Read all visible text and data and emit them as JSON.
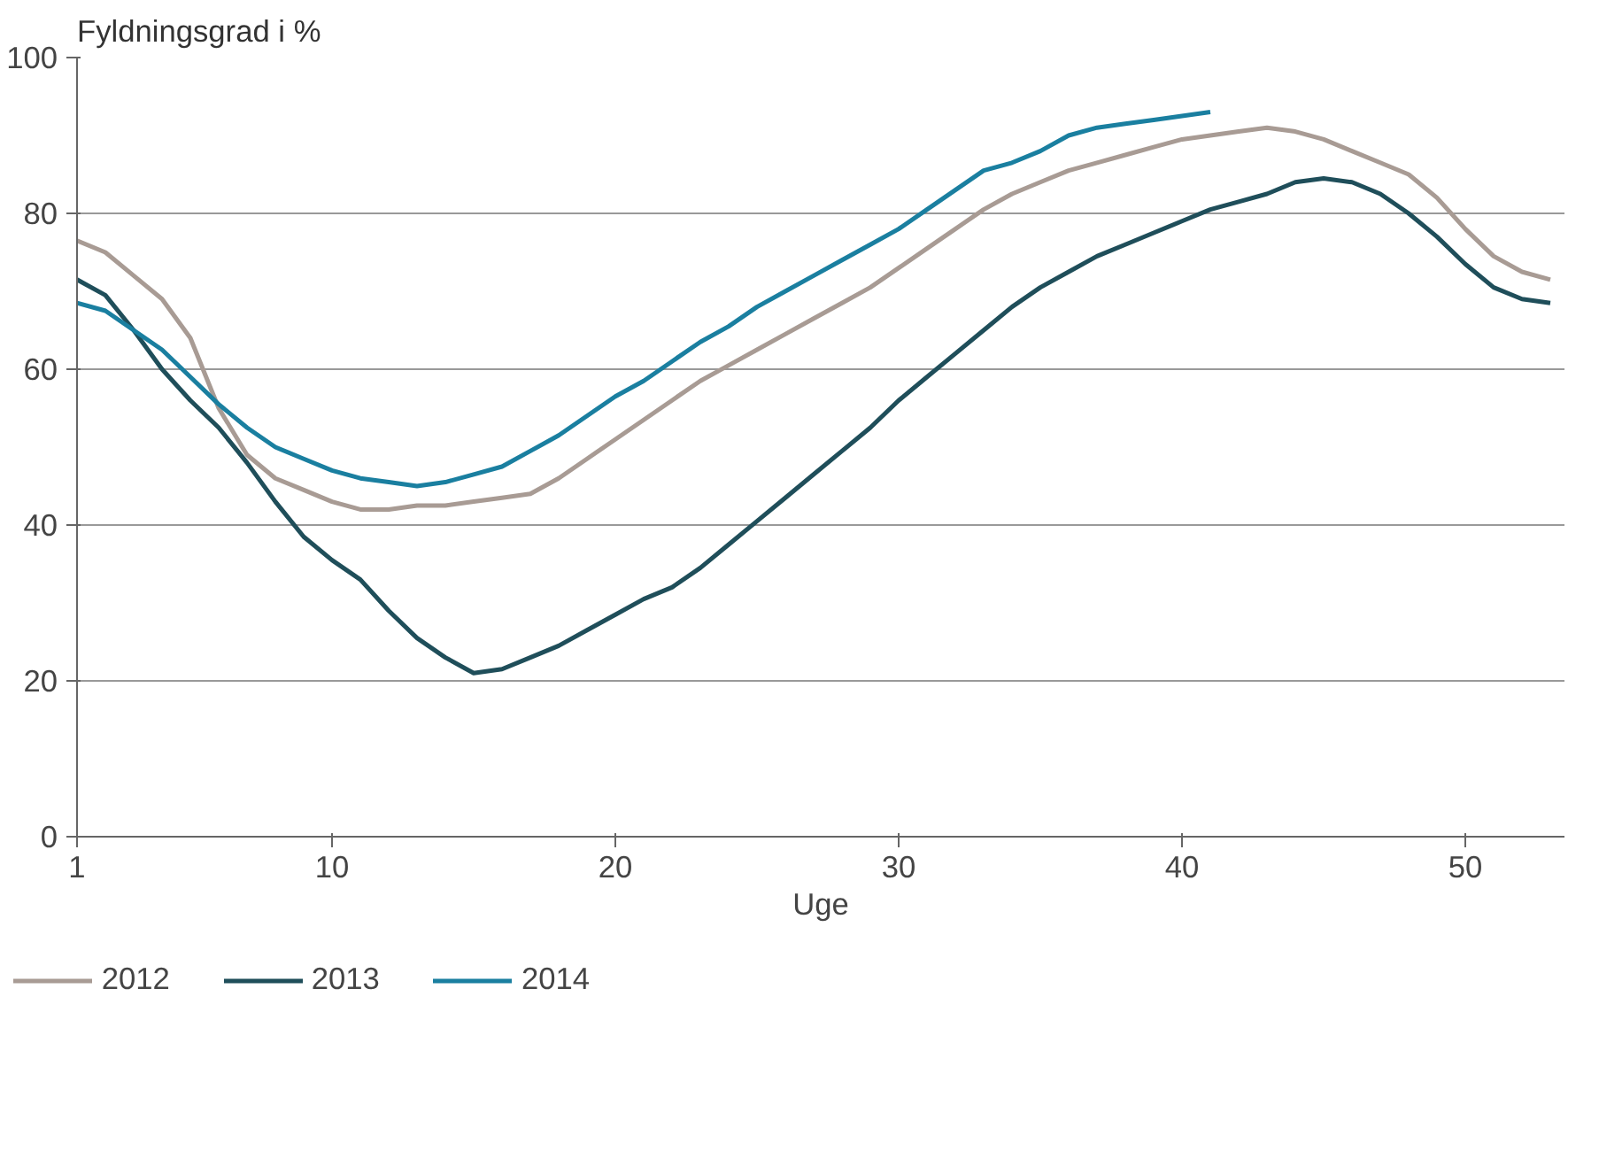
{
  "chart_data": {
    "type": "line",
    "ylabel": "Fyldningsgrad i %",
    "xlabel": "Uge",
    "x": [
      1,
      2,
      3,
      4,
      5,
      6,
      7,
      8,
      9,
      10,
      11,
      12,
      13,
      14,
      15,
      16,
      17,
      18,
      19,
      20,
      21,
      22,
      23,
      24,
      25,
      26,
      27,
      28,
      29,
      30,
      31,
      32,
      33,
      34,
      35,
      36,
      37,
      38,
      39,
      40,
      41,
      42,
      43,
      44,
      45,
      46,
      47,
      48,
      49,
      50,
      51,
      52,
      53
    ],
    "series": [
      {
        "name": "2012",
        "color": "#a89b94",
        "values": [
          76.5,
          75,
          72,
          69,
          64,
          55,
          49,
          46,
          44.5,
          43,
          42,
          42,
          42.5,
          42.5,
          43,
          43.5,
          44,
          46,
          48.5,
          51,
          53.5,
          56,
          58.5,
          60.5,
          62.5,
          64.5,
          66.5,
          68.5,
          70.5,
          73,
          75.5,
          78,
          80.5,
          82.5,
          84,
          85.5,
          86.5,
          87.5,
          88.5,
          89.5,
          90,
          90.5,
          91,
          90.5,
          89.5,
          88,
          86.5,
          85,
          82,
          78,
          74.5,
          72.5,
          71.5
        ]
      },
      {
        "name": "2013",
        "color": "#1f4e5a",
        "values": [
          71.5,
          69.5,
          65,
          60,
          56,
          52.5,
          48,
          43,
          38.5,
          35.5,
          33,
          29,
          25.5,
          23,
          21,
          21.5,
          23,
          24.5,
          26.5,
          28.5,
          30.5,
          32,
          34.5,
          37.5,
          40.5,
          43.5,
          46.5,
          49.5,
          52.5,
          56,
          59,
          62,
          65,
          68,
          70.5,
          72.5,
          74.5,
          76,
          77.5,
          79,
          80.5,
          81.5,
          82.5,
          84,
          84.5,
          84,
          82.5,
          80,
          77,
          73.5,
          70.5,
          69,
          68.5
        ]
      },
      {
        "name": "2014",
        "color": "#1a7fa0",
        "values": [
          68.5,
          67.5,
          65,
          62.5,
          59,
          55.5,
          52.5,
          50,
          48.5,
          47,
          46,
          45.5,
          45,
          45.5,
          46.5,
          47.5,
          49.5,
          51.5,
          54,
          56.5,
          58.5,
          61,
          63.5,
          65.5,
          68,
          70,
          72,
          74,
          76,
          78,
          80.5,
          83,
          85.5,
          86.5,
          88,
          90,
          91,
          91.5,
          92,
          92.5,
          93,
          null,
          null,
          null,
          null,
          null,
          null,
          null,
          null,
          null,
          null,
          null,
          null
        ]
      }
    ],
    "xlim": [
      1,
      53.5
    ],
    "xticks": [
      1,
      10,
      20,
      30,
      40,
      50
    ],
    "ylim": [
      0,
      100
    ],
    "yticks": [
      0,
      20,
      40,
      60,
      80,
      100
    ],
    "grid": "y",
    "legend": "bottom",
    "marker": "none",
    "line_style": "solid"
  }
}
